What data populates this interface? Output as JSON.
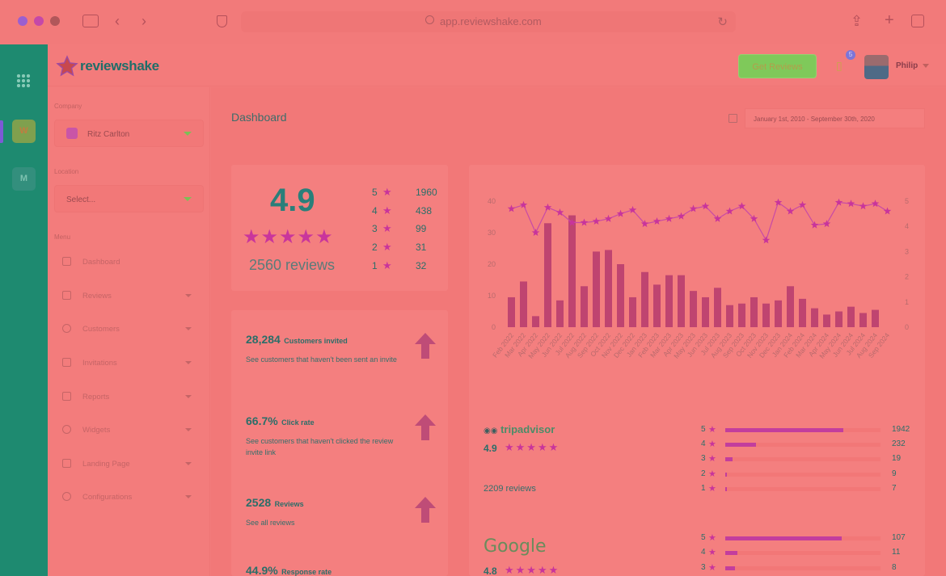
{
  "browser": {
    "url": "app.reviewshake.com"
  },
  "rail": {
    "workspaces": [
      "W",
      "M"
    ]
  },
  "header": {
    "logo_text": "reviewshake",
    "cta_label": "Get Reviews",
    "notification_count": "5",
    "user_name": "Philip"
  },
  "sidebar": {
    "company_label": "Company",
    "company_value": "Ritz Carlton",
    "location_label": "Location",
    "location_value": "Select...",
    "menu_label": "Menu",
    "items": [
      {
        "label": "Dashboard",
        "has_caret": false
      },
      {
        "label": "Reviews",
        "has_caret": true
      },
      {
        "label": "Customers",
        "has_caret": true
      },
      {
        "label": "Invitations",
        "has_caret": true
      },
      {
        "label": "Reports",
        "has_caret": true
      },
      {
        "label": "Widgets",
        "has_caret": true
      },
      {
        "label": "Landing Page",
        "has_caret": true
      },
      {
        "label": "Configurations",
        "has_caret": true
      }
    ]
  },
  "main": {
    "title": "Dashboard",
    "date_range": "January 1st, 2010 - September 30th, 2020",
    "summary": {
      "score": "4.9",
      "stars": "★★★★★",
      "total_reviews": "2560 reviews",
      "distribution": [
        {
          "stars": "5",
          "count": "1960"
        },
        {
          "stars": "4",
          "count": "438"
        },
        {
          "stars": "3",
          "count": "99"
        },
        {
          "stars": "2",
          "count": "31"
        },
        {
          "stars": "1",
          "count": "32"
        }
      ]
    },
    "stats": [
      {
        "value": "28,284",
        "label": "Customers invited",
        "desc": "See customers that haven't been sent an invite"
      },
      {
        "value": "66.7%",
        "label": "Click rate",
        "desc": "See customers that haven't clicked the review invite link"
      },
      {
        "value": "2528",
        "label": "Reviews",
        "desc": "See all reviews"
      },
      {
        "value": "44.9%",
        "label": "Response rate",
        "desc": ""
      }
    ],
    "sources": [
      {
        "name": "tripadvisor",
        "rating": "4.9",
        "stars": "★★★★★",
        "reviews": "2209 reviews",
        "rows": [
          {
            "stars": "5",
            "count": "1942",
            "fraction": 0.76
          },
          {
            "stars": "4",
            "count": "232",
            "fraction": 0.2
          },
          {
            "stars": "3",
            "count": "19",
            "fraction": 0.045
          },
          {
            "stars": "2",
            "count": "9",
            "fraction": 0.012
          },
          {
            "stars": "1",
            "count": "7",
            "fraction": 0.01
          }
        ]
      },
      {
        "name": "Google",
        "rating": "4.8",
        "stars": "★★★★★",
        "rows": [
          {
            "stars": "5",
            "count": "107",
            "fraction": 0.75
          },
          {
            "stars": "4",
            "count": "11",
            "fraction": 0.08
          },
          {
            "stars": "3",
            "count": "8",
            "fraction": 0.06
          }
        ]
      }
    ]
  },
  "chart_data": {
    "type": "bar",
    "categories": [
      "Feb 2022",
      "Mar 2022",
      "Apr 2022",
      "May 2022",
      "Jun 2022",
      "Jul 2022",
      "Aug 2022",
      "Sep 2022",
      "Oct 2022",
      "Nov 2022",
      "Dec 2022",
      "Jan 2023",
      "Feb 2023",
      "Mar 2023",
      "Apr 2023",
      "May 2023",
      "Jun 2023",
      "Jul 2023",
      "Aug 2023",
      "Sep 2023",
      "Oct 2023",
      "Nov 2023",
      "Dec 2023",
      "Jan 2024",
      "Feb 2024",
      "Mar 2024",
      "Apr 2024",
      "May 2024",
      "Jun 2024",
      "Jul 2024",
      "Aug 2024",
      "Sep 2024"
    ],
    "series": [
      {
        "type": "bar",
        "axis": "left",
        "values": [
          9.5,
          14.5,
          3.5,
          33,
          8.5,
          35.5,
          13,
          24,
          24.5,
          20,
          9.5,
          17.5,
          13.5,
          16.5,
          16.5,
          11.5,
          9.5,
          12.5,
          7,
          7.5,
          9.5,
          7.5,
          8.5,
          13,
          9,
          6,
          4,
          5,
          6.5,
          4.5,
          5.5,
          0
        ]
      },
      {
        "type": "line",
        "axis": "right",
        "values": [
          4.7,
          4.85,
          3.75,
          4.75,
          4.55,
          4.15,
          4.15,
          4.2,
          4.3,
          4.5,
          4.65,
          4.1,
          4.2,
          4.3,
          4.4,
          4.7,
          4.8,
          4.3,
          4.6,
          4.8,
          4.3,
          3.45,
          4.95,
          4.6,
          4.85,
          4.05,
          4.1,
          4.95,
          4.9,
          4.8,
          4.9,
          4.6
        ]
      }
    ],
    "yticks_left": [
      "0",
      "10",
      "20",
      "30",
      "40"
    ],
    "yticks_right": [
      "0",
      "1",
      "2",
      "3",
      "4",
      "5"
    ],
    "ylim_left": [
      0,
      40
    ],
    "ylim_right": [
      0,
      5
    ]
  }
}
